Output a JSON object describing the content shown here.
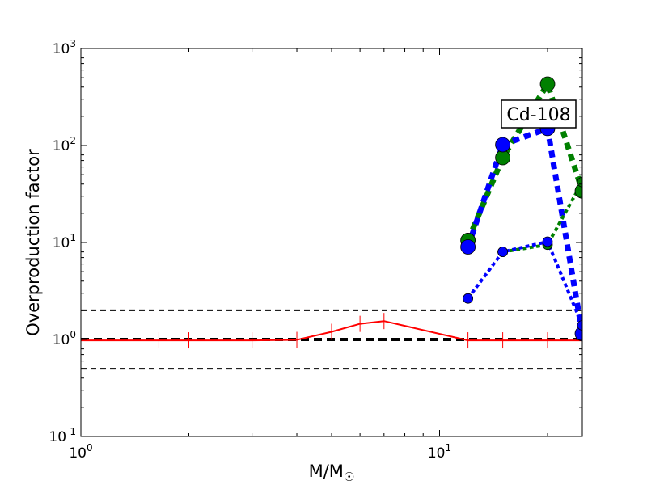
{
  "chart_data": {
    "type": "line",
    "xscale": "log",
    "yscale": "log",
    "xlim": [
      1,
      25
    ],
    "ylim": [
      0.1,
      1000
    ],
    "xlabel": "M/M",
    "xlabel_subscript": "☉",
    "ylabel": "Overproduction factor",
    "xticks": [
      {
        "value": 1,
        "base": "10",
        "exp": "0"
      },
      {
        "value": 10,
        "base": "10",
        "exp": "1"
      }
    ],
    "yticks": [
      {
        "value": 0.1,
        "base": "10",
        "exp": "-1"
      },
      {
        "value": 1,
        "base": "10",
        "exp": "0"
      },
      {
        "value": 10,
        "base": "10",
        "exp": "1"
      },
      {
        "value": 100,
        "base": "10",
        "exp": "2"
      },
      {
        "value": 1000,
        "base": "10",
        "exp": "3"
      }
    ],
    "annotation": "Cd-108",
    "hlines": [
      {
        "y": 2.0,
        "style": "dashed",
        "width": 2
      },
      {
        "y": 1.0,
        "style": "dashed",
        "width": 4
      },
      {
        "y": 0.5,
        "style": "dashed",
        "width": 2
      }
    ],
    "series": [
      {
        "color": "#ff0000",
        "style": "solid",
        "marker": "tick",
        "x": [
          1.0,
          1.65,
          2.0,
          3.0,
          4.0,
          5.0,
          6.0,
          7.0,
          12.0,
          15.0,
          20.0,
          25.0
        ],
        "y": [
          0.98,
          0.98,
          0.98,
          0.98,
          0.99,
          1.2,
          1.45,
          1.55,
          0.98,
          0.98,
          0.98,
          0.98
        ]
      },
      {
        "color": "#008000",
        "style": "dotted",
        "marker": "circle",
        "marker_size": 9,
        "width": 7,
        "x": [
          12,
          15,
          20,
          25
        ],
        "y": [
          10.5,
          75,
          430,
          34
        ]
      },
      {
        "color": "#0000ff",
        "style": "dotted",
        "marker": "circle",
        "marker_size": 9,
        "width": 7,
        "x": [
          12,
          15,
          20,
          25
        ],
        "y": [
          9,
          102,
          150,
          1.15
        ]
      },
      {
        "color": "#008000",
        "style": "dotted",
        "marker": "circle",
        "marker_size": 6,
        "width": 4,
        "x": [
          15,
          20,
          25
        ],
        "y": [
          8.0,
          9.5,
          42
        ]
      },
      {
        "color": "#0000ff",
        "style": "dotted",
        "marker": "circle",
        "marker_size": 6,
        "width": 4,
        "x": [
          12,
          15,
          20,
          25
        ],
        "y": [
          2.65,
          8.0,
          10.2,
          1.4
        ]
      }
    ]
  }
}
